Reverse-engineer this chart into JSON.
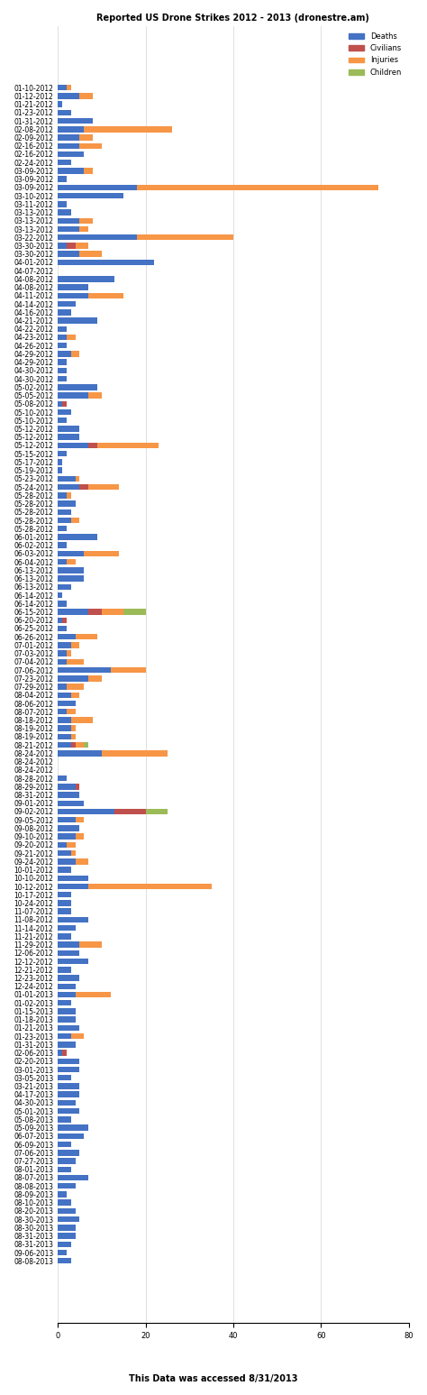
{
  "title": "Reported US Drone Strikes 2012 - 2013 (dronestre.am)",
  "footer": "This Data was accessed 8/31/2013",
  "colors": {
    "Deaths": "#4472C4",
    "Civilians": "#C0504D",
    "Injuries": "#F79646",
    "Children": "#9BBB59"
  },
  "records": [
    {
      "date": "01-10-2012",
      "Deaths": 2,
      "Civilians": 0,
      "Injuries": 1,
      "Children": 0
    },
    {
      "date": "01-12-2012",
      "Deaths": 5,
      "Civilians": 0,
      "Injuries": 3,
      "Children": 0
    },
    {
      "date": "01-21-2012",
      "Deaths": 1,
      "Civilians": 0,
      "Injuries": 0,
      "Children": 0
    },
    {
      "date": "01-23-2012",
      "Deaths": 3,
      "Civilians": 0,
      "Injuries": 0,
      "Children": 0
    },
    {
      "date": "01-31-2012",
      "Deaths": 8,
      "Civilians": 0,
      "Injuries": 0,
      "Children": 0
    },
    {
      "date": "02-08-2012",
      "Deaths": 6,
      "Civilians": 0,
      "Injuries": 20,
      "Children": 0
    },
    {
      "date": "02-09-2012",
      "Deaths": 5,
      "Civilians": 0,
      "Injuries": 3,
      "Children": 0
    },
    {
      "date": "02-16-2012",
      "Deaths": 5,
      "Civilians": 0,
      "Injuries": 5,
      "Children": 0
    },
    {
      "date": "02-16-2012",
      "Deaths": 6,
      "Civilians": 0,
      "Injuries": 0,
      "Children": 0
    },
    {
      "date": "02-24-2012",
      "Deaths": 3,
      "Civilians": 0,
      "Injuries": 0,
      "Children": 0
    },
    {
      "date": "03-09-2012",
      "Deaths": 6,
      "Civilians": 0,
      "Injuries": 2,
      "Children": 0
    },
    {
      "date": "03-09-2012",
      "Deaths": 2,
      "Civilians": 0,
      "Injuries": 0,
      "Children": 0
    },
    {
      "date": "03-09-2012",
      "Deaths": 18,
      "Civilians": 0,
      "Injuries": 55,
      "Children": 0
    },
    {
      "date": "03-10-2012",
      "Deaths": 15,
      "Civilians": 0,
      "Injuries": 0,
      "Children": 0
    },
    {
      "date": "03-11-2012",
      "Deaths": 2,
      "Civilians": 0,
      "Injuries": 0,
      "Children": 0
    },
    {
      "date": "03-13-2012",
      "Deaths": 3,
      "Civilians": 0,
      "Injuries": 0,
      "Children": 0
    },
    {
      "date": "03-13-2012",
      "Deaths": 5,
      "Civilians": 0,
      "Injuries": 3,
      "Children": 0
    },
    {
      "date": "03-13-2012",
      "Deaths": 5,
      "Civilians": 0,
      "Injuries": 2,
      "Children": 0
    },
    {
      "date": "03-22-2012",
      "Deaths": 18,
      "Civilians": 0,
      "Injuries": 22,
      "Children": 0
    },
    {
      "date": "03-30-2012",
      "Deaths": 2,
      "Civilians": 2,
      "Injuries": 3,
      "Children": 0
    },
    {
      "date": "03-30-2012",
      "Deaths": 5,
      "Civilians": 0,
      "Injuries": 5,
      "Children": 0
    },
    {
      "date": "04-01-2012",
      "Deaths": 22,
      "Civilians": 0,
      "Injuries": 0,
      "Children": 0
    },
    {
      "date": "04-07-2012",
      "Deaths": 0,
      "Civilians": 0,
      "Injuries": 0,
      "Children": 0
    },
    {
      "date": "04-08-2012",
      "Deaths": 13,
      "Civilians": 0,
      "Injuries": 0,
      "Children": 0
    },
    {
      "date": "04-08-2012",
      "Deaths": 7,
      "Civilians": 0,
      "Injuries": 0,
      "Children": 0
    },
    {
      "date": "04-11-2012",
      "Deaths": 7,
      "Civilians": 0,
      "Injuries": 8,
      "Children": 0
    },
    {
      "date": "04-14-2012",
      "Deaths": 4,
      "Civilians": 0,
      "Injuries": 0,
      "Children": 0
    },
    {
      "date": "04-16-2012",
      "Deaths": 3,
      "Civilians": 0,
      "Injuries": 0,
      "Children": 0
    },
    {
      "date": "04-21-2012",
      "Deaths": 9,
      "Civilians": 0,
      "Injuries": 0,
      "Children": 0
    },
    {
      "date": "04-22-2012",
      "Deaths": 2,
      "Civilians": 0,
      "Injuries": 0,
      "Children": 0
    },
    {
      "date": "04-23-2012",
      "Deaths": 2,
      "Civilians": 0,
      "Injuries": 2,
      "Children": 0
    },
    {
      "date": "04-26-2012",
      "Deaths": 2,
      "Civilians": 0,
      "Injuries": 0,
      "Children": 0
    },
    {
      "date": "04-29-2012",
      "Deaths": 3,
      "Civilians": 0,
      "Injuries": 2,
      "Children": 0
    },
    {
      "date": "04-29-2012",
      "Deaths": 2,
      "Civilians": 0,
      "Injuries": 0,
      "Children": 0
    },
    {
      "date": "04-30-2012",
      "Deaths": 2,
      "Civilians": 0,
      "Injuries": 0,
      "Children": 0
    },
    {
      "date": "04-30-2012",
      "Deaths": 2,
      "Civilians": 0,
      "Injuries": 0,
      "Children": 0
    },
    {
      "date": "05-02-2012",
      "Deaths": 9,
      "Civilians": 0,
      "Injuries": 0,
      "Children": 0
    },
    {
      "date": "05-05-2012",
      "Deaths": 7,
      "Civilians": 0,
      "Injuries": 3,
      "Children": 0
    },
    {
      "date": "05-08-2012",
      "Deaths": 1,
      "Civilians": 1,
      "Injuries": 0,
      "Children": 0
    },
    {
      "date": "05-10-2012",
      "Deaths": 3,
      "Civilians": 0,
      "Injuries": 0,
      "Children": 0
    },
    {
      "date": "05-10-2012",
      "Deaths": 2,
      "Civilians": 0,
      "Injuries": 0,
      "Children": 0
    },
    {
      "date": "05-12-2012",
      "Deaths": 5,
      "Civilians": 0,
      "Injuries": 0,
      "Children": 0
    },
    {
      "date": "05-12-2012",
      "Deaths": 5,
      "Civilians": 0,
      "Injuries": 0,
      "Children": 0
    },
    {
      "date": "05-12-2012",
      "Deaths": 7,
      "Civilians": 2,
      "Injuries": 14,
      "Children": 0
    },
    {
      "date": "05-15-2012",
      "Deaths": 2,
      "Civilians": 0,
      "Injuries": 0,
      "Children": 0
    },
    {
      "date": "05-17-2012",
      "Deaths": 1,
      "Civilians": 0,
      "Injuries": 0,
      "Children": 0
    },
    {
      "date": "05-19-2012",
      "Deaths": 1,
      "Civilians": 0,
      "Injuries": 0,
      "Children": 0
    },
    {
      "date": "05-23-2012",
      "Deaths": 4,
      "Civilians": 0,
      "Injuries": 1,
      "Children": 0
    },
    {
      "date": "05-24-2012",
      "Deaths": 5,
      "Civilians": 2,
      "Injuries": 7,
      "Children": 0
    },
    {
      "date": "05-28-2012",
      "Deaths": 2,
      "Civilians": 0,
      "Injuries": 1,
      "Children": 0
    },
    {
      "date": "05-28-2012",
      "Deaths": 4,
      "Civilians": 0,
      "Injuries": 0,
      "Children": 0
    },
    {
      "date": "05-28-2012",
      "Deaths": 3,
      "Civilians": 0,
      "Injuries": 0,
      "Children": 0
    },
    {
      "date": "05-28-2012",
      "Deaths": 3,
      "Civilians": 0,
      "Injuries": 2,
      "Children": 0
    },
    {
      "date": "05-28-2012",
      "Deaths": 2,
      "Civilians": 0,
      "Injuries": 0,
      "Children": 0
    },
    {
      "date": "06-01-2012",
      "Deaths": 9,
      "Civilians": 0,
      "Injuries": 0,
      "Children": 0
    },
    {
      "date": "06-02-2012",
      "Deaths": 2,
      "Civilians": 0,
      "Injuries": 0,
      "Children": 0
    },
    {
      "date": "06-03-2012",
      "Deaths": 6,
      "Civilians": 0,
      "Injuries": 8,
      "Children": 0
    },
    {
      "date": "06-04-2012",
      "Deaths": 2,
      "Civilians": 0,
      "Injuries": 2,
      "Children": 0
    },
    {
      "date": "06-13-2012",
      "Deaths": 6,
      "Civilians": 0,
      "Injuries": 0,
      "Children": 0
    },
    {
      "date": "06-13-2012",
      "Deaths": 6,
      "Civilians": 0,
      "Injuries": 0,
      "Children": 0
    },
    {
      "date": "06-13-2012",
      "Deaths": 3,
      "Civilians": 0,
      "Injuries": 0,
      "Children": 0
    },
    {
      "date": "06-14-2012",
      "Deaths": 1,
      "Civilians": 0,
      "Injuries": 0,
      "Children": 0
    },
    {
      "date": "06-14-2012",
      "Deaths": 2,
      "Civilians": 0,
      "Injuries": 0,
      "Children": 0
    },
    {
      "date": "06-15-2012",
      "Deaths": 7,
      "Civilians": 3,
      "Injuries": 5,
      "Children": 5
    },
    {
      "date": "06-20-2012",
      "Deaths": 1,
      "Civilians": 1,
      "Injuries": 0,
      "Children": 0
    },
    {
      "date": "06-25-2012",
      "Deaths": 2,
      "Civilians": 0,
      "Injuries": 0,
      "Children": 0
    },
    {
      "date": "06-26-2012",
      "Deaths": 4,
      "Civilians": 0,
      "Injuries": 5,
      "Children": 0
    },
    {
      "date": "07-01-2012",
      "Deaths": 3,
      "Civilians": 0,
      "Injuries": 2,
      "Children": 0
    },
    {
      "date": "07-03-2012",
      "Deaths": 2,
      "Civilians": 0,
      "Injuries": 1,
      "Children": 0
    },
    {
      "date": "07-04-2012",
      "Deaths": 2,
      "Civilians": 0,
      "Injuries": 4,
      "Children": 0
    },
    {
      "date": "07-06-2012",
      "Deaths": 12,
      "Civilians": 0,
      "Injuries": 8,
      "Children": 0
    },
    {
      "date": "07-23-2012",
      "Deaths": 7,
      "Civilians": 0,
      "Injuries": 3,
      "Children": 0
    },
    {
      "date": "07-29-2012",
      "Deaths": 2,
      "Civilians": 0,
      "Injuries": 4,
      "Children": 0
    },
    {
      "date": "08-04-2012",
      "Deaths": 3,
      "Civilians": 0,
      "Injuries": 2,
      "Children": 0
    },
    {
      "date": "08-06-2012",
      "Deaths": 4,
      "Civilians": 0,
      "Injuries": 0,
      "Children": 0
    },
    {
      "date": "08-07-2012",
      "Deaths": 2,
      "Civilians": 0,
      "Injuries": 2,
      "Children": 0
    },
    {
      "date": "08-18-2012",
      "Deaths": 3,
      "Civilians": 0,
      "Injuries": 5,
      "Children": 0
    },
    {
      "date": "08-19-2012",
      "Deaths": 3,
      "Civilians": 0,
      "Injuries": 1,
      "Children": 0
    },
    {
      "date": "08-19-2012",
      "Deaths": 3,
      "Civilians": 0,
      "Injuries": 1,
      "Children": 0
    },
    {
      "date": "08-21-2012",
      "Deaths": 3,
      "Civilians": 1,
      "Injuries": 2,
      "Children": 1
    },
    {
      "date": "08-24-2012",
      "Deaths": 10,
      "Civilians": 0,
      "Injuries": 15,
      "Children": 0
    },
    {
      "date": "08-24-2012",
      "Deaths": 0,
      "Civilians": 0,
      "Injuries": 0,
      "Children": 0
    },
    {
      "date": "08-24-2012",
      "Deaths": 0,
      "Civilians": 0,
      "Injuries": 0,
      "Children": 0
    },
    {
      "date": "08-28-2012",
      "Deaths": 2,
      "Civilians": 0,
      "Injuries": 0,
      "Children": 0
    },
    {
      "date": "08-29-2012",
      "Deaths": 4,
      "Civilians": 1,
      "Injuries": 0,
      "Children": 0
    },
    {
      "date": "08-31-2012",
      "Deaths": 5,
      "Civilians": 0,
      "Injuries": 0,
      "Children": 0
    },
    {
      "date": "09-01-2012",
      "Deaths": 6,
      "Civilians": 0,
      "Injuries": 0,
      "Children": 0
    },
    {
      "date": "09-02-2012",
      "Deaths": 13,
      "Civilians": 7,
      "Injuries": 0,
      "Children": 5
    },
    {
      "date": "09-05-2012",
      "Deaths": 4,
      "Civilians": 0,
      "Injuries": 2,
      "Children": 0
    },
    {
      "date": "09-08-2012",
      "Deaths": 5,
      "Civilians": 0,
      "Injuries": 0,
      "Children": 0
    },
    {
      "date": "09-10-2012",
      "Deaths": 4,
      "Civilians": 0,
      "Injuries": 2,
      "Children": 0
    },
    {
      "date": "09-20-2012",
      "Deaths": 2,
      "Civilians": 0,
      "Injuries": 2,
      "Children": 0
    },
    {
      "date": "09-21-2012",
      "Deaths": 3,
      "Civilians": 0,
      "Injuries": 1,
      "Children": 0
    },
    {
      "date": "09-24-2012",
      "Deaths": 4,
      "Civilians": 0,
      "Injuries": 3,
      "Children": 0
    },
    {
      "date": "10-01-2012",
      "Deaths": 3,
      "Civilians": 0,
      "Injuries": 0,
      "Children": 0
    },
    {
      "date": "10-10-2012",
      "Deaths": 7,
      "Civilians": 0,
      "Injuries": 0,
      "Children": 0
    },
    {
      "date": "10-12-2012",
      "Deaths": 7,
      "Civilians": 0,
      "Injuries": 28,
      "Children": 0
    },
    {
      "date": "10-17-2012",
      "Deaths": 3,
      "Civilians": 0,
      "Injuries": 0,
      "Children": 0
    },
    {
      "date": "10-24-2012",
      "Deaths": 3,
      "Civilians": 0,
      "Injuries": 0,
      "Children": 0
    },
    {
      "date": "11-07-2012",
      "Deaths": 3,
      "Civilians": 0,
      "Injuries": 0,
      "Children": 0
    },
    {
      "date": "11-08-2012",
      "Deaths": 7,
      "Civilians": 0,
      "Injuries": 0,
      "Children": 0
    },
    {
      "date": "11-14-2012",
      "Deaths": 4,
      "Civilians": 0,
      "Injuries": 0,
      "Children": 0
    },
    {
      "date": "11-21-2012",
      "Deaths": 3,
      "Civilians": 0,
      "Injuries": 0,
      "Children": 0
    },
    {
      "date": "11-29-2012",
      "Deaths": 5,
      "Civilians": 0,
      "Injuries": 5,
      "Children": 0
    },
    {
      "date": "12-06-2012",
      "Deaths": 5,
      "Civilians": 0,
      "Injuries": 0,
      "Children": 0
    },
    {
      "date": "12-12-2012",
      "Deaths": 7,
      "Civilians": 0,
      "Injuries": 0,
      "Children": 0
    },
    {
      "date": "12-21-2012",
      "Deaths": 3,
      "Civilians": 0,
      "Injuries": 0,
      "Children": 0
    },
    {
      "date": "12-23-2012",
      "Deaths": 5,
      "Civilians": 0,
      "Injuries": 0,
      "Children": 0
    },
    {
      "date": "12-24-2012",
      "Deaths": 4,
      "Civilians": 0,
      "Injuries": 0,
      "Children": 0
    },
    {
      "date": "01-01-2013",
      "Deaths": 4,
      "Civilians": 0,
      "Injuries": 8,
      "Children": 0
    },
    {
      "date": "01-02-2013",
      "Deaths": 3,
      "Civilians": 0,
      "Injuries": 0,
      "Children": 0
    },
    {
      "date": "01-15-2013",
      "Deaths": 4,
      "Civilians": 0,
      "Injuries": 0,
      "Children": 0
    },
    {
      "date": "01-18-2013",
      "Deaths": 4,
      "Civilians": 0,
      "Injuries": 0,
      "Children": 0
    },
    {
      "date": "01-21-2013",
      "Deaths": 5,
      "Civilians": 0,
      "Injuries": 0,
      "Children": 0
    },
    {
      "date": "01-23-2013",
      "Deaths": 3,
      "Civilians": 0,
      "Injuries": 3,
      "Children": 0
    },
    {
      "date": "01-31-2013",
      "Deaths": 4,
      "Civilians": 0,
      "Injuries": 0,
      "Children": 0
    },
    {
      "date": "02-06-2013",
      "Deaths": 1,
      "Civilians": 1,
      "Injuries": 0,
      "Children": 0
    },
    {
      "date": "02-20-2013",
      "Deaths": 5,
      "Civilians": 0,
      "Injuries": 0,
      "Children": 0
    },
    {
      "date": "03-01-2013",
      "Deaths": 5,
      "Civilians": 0,
      "Injuries": 0,
      "Children": 0
    },
    {
      "date": "03-05-2013",
      "Deaths": 3,
      "Civilians": 0,
      "Injuries": 0,
      "Children": 0
    },
    {
      "date": "03-21-2013",
      "Deaths": 5,
      "Civilians": 0,
      "Injuries": 0,
      "Children": 0
    },
    {
      "date": "04-17-2013",
      "Deaths": 5,
      "Civilians": 0,
      "Injuries": 0,
      "Children": 0
    },
    {
      "date": "04-30-2013",
      "Deaths": 4,
      "Civilians": 0,
      "Injuries": 0,
      "Children": 0
    },
    {
      "date": "05-01-2013",
      "Deaths": 5,
      "Civilians": 0,
      "Injuries": 0,
      "Children": 0
    },
    {
      "date": "05-08-2013",
      "Deaths": 3,
      "Civilians": 0,
      "Injuries": 0,
      "Children": 0
    },
    {
      "date": "05-09-2013",
      "Deaths": 7,
      "Civilians": 0,
      "Injuries": 0,
      "Children": 0
    },
    {
      "date": "06-07-2013",
      "Deaths": 6,
      "Civilians": 0,
      "Injuries": 0,
      "Children": 0
    },
    {
      "date": "06-09-2013",
      "Deaths": 3,
      "Civilians": 0,
      "Injuries": 0,
      "Children": 0
    },
    {
      "date": "07-06-2013",
      "Deaths": 5,
      "Civilians": 0,
      "Injuries": 0,
      "Children": 0
    },
    {
      "date": "07-27-2013",
      "Deaths": 4,
      "Civilians": 0,
      "Injuries": 0,
      "Children": 0
    },
    {
      "date": "08-01-2013",
      "Deaths": 3,
      "Civilians": 0,
      "Injuries": 0,
      "Children": 0
    },
    {
      "date": "08-07-2013",
      "Deaths": 7,
      "Civilians": 0,
      "Injuries": 0,
      "Children": 0
    },
    {
      "date": "08-08-2013",
      "Deaths": 4,
      "Civilians": 0,
      "Injuries": 0,
      "Children": 0
    },
    {
      "date": "08-09-2013",
      "Deaths": 2,
      "Civilians": 0,
      "Injuries": 0,
      "Children": 0
    },
    {
      "date": "08-10-2013",
      "Deaths": 3,
      "Civilians": 0,
      "Injuries": 0,
      "Children": 0
    },
    {
      "date": "08-20-2013",
      "Deaths": 4,
      "Civilians": 0,
      "Injuries": 0,
      "Children": 0
    },
    {
      "date": "08-30-2013",
      "Deaths": 5,
      "Civilians": 0,
      "Injuries": 0,
      "Children": 0
    },
    {
      "date": "08-30-2013",
      "Deaths": 4,
      "Civilians": 0,
      "Injuries": 0,
      "Children": 0
    },
    {
      "date": "08-31-2013",
      "Deaths": 4,
      "Civilians": 0,
      "Injuries": 0,
      "Children": 0
    },
    {
      "date": "08-31-2013",
      "Deaths": 3,
      "Civilians": 0,
      "Injuries": 0,
      "Children": 0
    },
    {
      "date": "09-06-2013",
      "Deaths": 2,
      "Civilians": 0,
      "Injuries": 0,
      "Children": 0
    },
    {
      "date": "08-08-2013",
      "Deaths": 3,
      "Civilians": 0,
      "Injuries": 0,
      "Children": 0
    }
  ],
  "xlim": [
    0,
    80
  ],
  "xticks": [
    0,
    20,
    40,
    60,
    80
  ],
  "bar_height": 0.7,
  "figsize": [
    4.74,
    15.47
  ]
}
